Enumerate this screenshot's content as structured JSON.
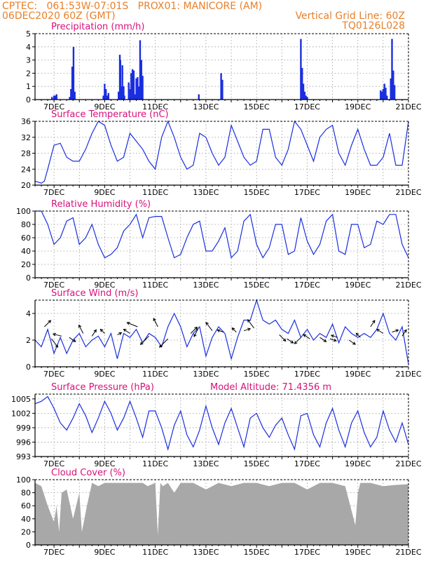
{
  "header": {
    "line1_left": "CPTEC:   061:53W-07:01S   PROX01: MANICORE (AM)",
    "line2_left": "06DEC2020 60Z (GMT)",
    "line2_right": "Vertical Grid Line: 60Z",
    "line3_right": "TQ0126L028"
  },
  "colors": {
    "header_text": "#e8802a",
    "panel_title": "#d8107a",
    "series_line": "#1a2ee0",
    "precip_bar": "#1a2ee0",
    "cloud_fill": "#a8a8a8",
    "axis": "#000000",
    "grid": "#999999"
  },
  "chart_data": [
    {
      "type": "bar",
      "title": "Precipitation  (mm/h)",
      "x_ticks": [
        "7DEC",
        "9DEC",
        "11DEC",
        "13DEC",
        "15DEC",
        "17DEC",
        "19DEC",
        "21DEC"
      ],
      "xlim": [
        6.25,
        21.0
      ],
      "ylim": [
        0,
        5
      ],
      "yticks": [
        0,
        1,
        2,
        3,
        4,
        5
      ],
      "series": [
        {
          "x": [
            6.92,
            7.0,
            7.05,
            7.1,
            7.62,
            7.67,
            7.72,
            7.77,
            7.82,
            8.95,
            9.0,
            9.05,
            9.1,
            9.15,
            9.55,
            9.6,
            9.62,
            9.65,
            9.7,
            9.75,
            9.78,
            9.95,
            10.0,
            10.05,
            10.1,
            10.15,
            10.2,
            10.25,
            10.3,
            10.35,
            10.4,
            10.45,
            10.5,
            12.72,
            13.6,
            13.65,
            16.75,
            16.8,
            16.85,
            16.9,
            16.95,
            17.0,
            19.9,
            19.95,
            20.0,
            20.05,
            20.1,
            20.15,
            20.3,
            20.35,
            20.4,
            20.45
          ],
          "values": [
            0.2,
            0.3,
            0.3,
            0.4,
            0.2,
            0.8,
            2.5,
            4.0,
            0.6,
            0.3,
            1.2,
            0.8,
            0.3,
            0.5,
            0.6,
            3.4,
            3.0,
            1.0,
            2.6,
            1.0,
            0.3,
            1.3,
            0.8,
            2.0,
            2.3,
            2.2,
            0.4,
            1.6,
            1.7,
            1.0,
            4.5,
            3.0,
            1.8,
            0.4,
            2.0,
            1.5,
            4.6,
            2.4,
            1.2,
            0.6,
            0.3,
            0.2,
            0.7,
            0.6,
            0.8,
            1.2,
            0.9,
            0.3,
            1.6,
            4.6,
            2.2,
            1.1
          ]
        }
      ]
    },
    {
      "type": "line",
      "title": "Surface Temperature  (nC)",
      "x_ticks": [
        "7DEC",
        "9DEC",
        "11DEC",
        "13DEC",
        "15DEC",
        "17DEC",
        "19DEC",
        "21DEC"
      ],
      "xlim": [
        6.25,
        21.0
      ],
      "ylim": [
        20,
        36
      ],
      "yticks": [
        20,
        24,
        28,
        32,
        36
      ],
      "series": [
        {
          "x": [
            6.25,
            6.5,
            6.62,
            6.75,
            7.0,
            7.25,
            7.5,
            7.75,
            8.0,
            8.25,
            8.5,
            8.75,
            9.0,
            9.25,
            9.5,
            9.75,
            10.0,
            10.25,
            10.5,
            10.75,
            11.0,
            11.25,
            11.5,
            11.75,
            12.0,
            12.25,
            12.5,
            12.75,
            13.0,
            13.25,
            13.5,
            13.75,
            14.0,
            14.25,
            14.5,
            14.75,
            15.0,
            15.25,
            15.5,
            15.75,
            16.0,
            16.25,
            16.5,
            16.75,
            17.0,
            17.25,
            17.5,
            17.75,
            18.0,
            18.25,
            18.5,
            18.75,
            19.0,
            19.25,
            19.5,
            19.75,
            20.0,
            20.25,
            20.5,
            20.75,
            21.0
          ],
          "values": [
            21,
            20.5,
            21,
            24,
            30,
            30.5,
            27,
            26,
            26,
            29,
            33,
            36,
            35,
            30,
            26,
            27,
            33,
            31,
            29,
            26,
            24,
            32,
            36,
            32,
            27,
            24,
            25,
            33,
            32,
            28,
            25,
            27,
            35,
            31,
            27,
            25,
            26,
            34,
            34,
            27,
            25,
            29,
            36,
            34,
            30,
            26,
            32,
            34,
            35,
            28,
            25,
            30,
            34,
            29,
            25,
            25,
            27,
            33,
            25,
            25,
            36
          ]
        }
      ]
    },
    {
      "type": "line",
      "title": "Relative Humidity  (%)",
      "x_ticks": [
        "7DEC",
        "9DEC",
        "11DEC",
        "13DEC",
        "15DEC",
        "17DEC",
        "19DEC",
        "21DEC"
      ],
      "xlim": [
        6.25,
        21.0
      ],
      "ylim": [
        0,
        100
      ],
      "yticks": [
        0,
        20,
        40,
        60,
        80,
        100
      ],
      "series": [
        {
          "x": [
            6.25,
            6.5,
            6.75,
            7.0,
            7.25,
            7.5,
            7.75,
            8.0,
            8.25,
            8.5,
            8.75,
            9.0,
            9.25,
            9.5,
            9.75,
            10.0,
            10.25,
            10.5,
            10.75,
            11.0,
            11.25,
            11.5,
            11.75,
            12.0,
            12.25,
            12.5,
            12.75,
            13.0,
            13.25,
            13.5,
            13.75,
            14.0,
            14.25,
            14.5,
            14.75,
            15.0,
            15.25,
            15.5,
            15.75,
            16.0,
            16.25,
            16.5,
            16.75,
            17.0,
            17.25,
            17.5,
            17.75,
            18.0,
            18.25,
            18.5,
            18.75,
            19.0,
            19.25,
            19.5,
            19.75,
            20.0,
            20.25,
            20.5,
            20.75,
            21.0
          ],
          "values": [
            100,
            100,
            80,
            50,
            60,
            85,
            90,
            50,
            60,
            80,
            50,
            30,
            35,
            45,
            70,
            80,
            95,
            60,
            90,
            92,
            92,
            60,
            30,
            35,
            60,
            80,
            85,
            40,
            40,
            55,
            75,
            30,
            40,
            85,
            95,
            50,
            30,
            45,
            80,
            80,
            35,
            40,
            90,
            55,
            35,
            50,
            85,
            95,
            40,
            35,
            80,
            80,
            45,
            50,
            85,
            80,
            95,
            95,
            50,
            30
          ]
        }
      ]
    },
    {
      "type": "line",
      "title": "Surface Wind  (m/s)",
      "x_ticks": [
        "7DEC",
        "9DEC",
        "11DEC",
        "13DEC",
        "15DEC",
        "17DEC",
        "19DEC",
        "21DEC"
      ],
      "xlim": [
        6.25,
        21.0
      ],
      "ylim": [
        0,
        5
      ],
      "yticks": [
        0,
        2,
        4
      ],
      "series": [
        {
          "x": [
            6.25,
            6.5,
            6.75,
            7.0,
            7.25,
            7.5,
            7.75,
            8.0,
            8.25,
            8.5,
            8.75,
            9.0,
            9.25,
            9.5,
            9.75,
            10.0,
            10.25,
            10.5,
            10.75,
            11.0,
            11.25,
            11.5,
            11.75,
            12.0,
            12.25,
            12.5,
            12.75,
            13.0,
            13.25,
            13.5,
            13.75,
            14.0,
            14.25,
            14.5,
            14.75,
            15.0,
            15.25,
            15.5,
            15.75,
            16.0,
            16.25,
            16.5,
            16.75,
            17.0,
            17.25,
            17.5,
            17.75,
            18.0,
            18.25,
            18.5,
            18.75,
            19.0,
            19.25,
            19.5,
            19.75,
            20.0,
            20.25,
            20.5,
            20.75,
            21.0
          ],
          "values": [
            2,
            1.5,
            2.8,
            1,
            2.2,
            1,
            2,
            2.5,
            1.5,
            2,
            2.3,
            1.5,
            2.5,
            0.6,
            2.5,
            2.2,
            2.8,
            1.8,
            2.5,
            2.2,
            1.5,
            3,
            4,
            3,
            1.5,
            2.5,
            3,
            0.8,
            2.2,
            3,
            2.5,
            0.6,
            2.2,
            3.5,
            3.5,
            5,
            3.5,
            3.2,
            3.5,
            2.8,
            2.5,
            3.5,
            2.2,
            2.8,
            2,
            2.5,
            2.2,
            3.2,
            1.8,
            3,
            2.5,
            2.2,
            2.5,
            2.2,
            2.8,
            4,
            2.5,
            2,
            3,
            0.2
          ]
        }
      ],
      "wind_arrows": {
        "x": [
          6.62,
          6.9,
          7.3,
          7.6,
          8.15,
          8.5,
          9.0,
          9.5,
          10.0,
          10.3,
          10.75,
          11.1,
          11.5,
          12.4,
          12.7,
          13.25,
          13.7,
          14.2,
          14.5,
          14.9,
          15.9,
          16.2,
          16.75,
          17.1,
          17.5,
          17.9,
          18.2,
          18.65,
          19.1,
          19.5,
          20.0,
          20.35,
          20.75
        ],
        "y": [
          3.0,
          2.1,
          2.3,
          2.2,
          2.5,
          2.3,
          2.5,
          2.4,
          2.5,
          3.0,
          2.3,
          3.0,
          2.1,
          2.5,
          2.9,
          2.7,
          2.6,
          2.6,
          2.7,
          2.9,
          2.4,
          2.1,
          2.2,
          2.1,
          2.2,
          2.1,
          2.2,
          2.0,
          2.2,
          3.0,
          2.5,
          2.6,
          2.3
        ],
        "u": [
          3,
          3,
          -4,
          3,
          -2,
          2,
          -2,
          2,
          -3,
          -5,
          -4,
          -2,
          -4,
          3,
          -2,
          -3,
          -3,
          -2,
          3,
          -3,
          3,
          3,
          -3,
          -3,
          3,
          3,
          -3,
          3,
          -2,
          2,
          -3,
          3,
          2
        ],
        "v": [
          3,
          -4,
          1,
          -2,
          4,
          3,
          2,
          1,
          2,
          2,
          -4,
          4,
          -4,
          3,
          -4,
          4,
          1,
          2,
          1,
          4,
          -3,
          -2,
          -3,
          2,
          -2,
          -1,
          1,
          -2,
          2,
          3,
          2,
          1,
          3
        ]
      }
    },
    {
      "type": "line",
      "title": "Surface Pressure  (hPa)",
      "annotation": "Model Altitude:  71.4356  m",
      "x_ticks": [
        "7DEC",
        "9DEC",
        "11DEC",
        "13DEC",
        "15DEC",
        "17DEC",
        "19DEC",
        "21DEC"
      ],
      "xlim": [
        6.25,
        21.0
      ],
      "ylim": [
        993,
        1006
      ],
      "yticks": [
        993,
        996,
        999,
        1002,
        1005
      ],
      "series": [
        {
          "x": [
            6.25,
            6.5,
            6.75,
            7.0,
            7.25,
            7.5,
            7.75,
            8.0,
            8.25,
            8.5,
            8.75,
            9.0,
            9.25,
            9.5,
            9.75,
            10.0,
            10.25,
            10.5,
            10.75,
            11.0,
            11.25,
            11.5,
            11.75,
            12.0,
            12.25,
            12.5,
            12.75,
            13.0,
            13.25,
            13.5,
            13.75,
            14.0,
            14.25,
            14.5,
            14.75,
            15.0,
            15.25,
            15.5,
            15.75,
            16.0,
            16.25,
            16.5,
            16.75,
            17.0,
            17.25,
            17.5,
            17.75,
            18.0,
            18.25,
            18.5,
            18.75,
            19.0,
            19.25,
            19.5,
            19.75,
            20.0,
            20.25,
            20.5,
            20.75,
            21.0
          ],
          "values": [
            1004,
            1004.5,
            1005.5,
            1003,
            1000,
            998.5,
            1001,
            1004,
            1001.5,
            998,
            1001,
            1004.5,
            1002,
            998.5,
            1001,
            1004.5,
            1001,
            997,
            1002.5,
            1002.5,
            999,
            994.5,
            999.5,
            1002.5,
            997.5,
            995,
            998.5,
            1003.5,
            999,
            995.5,
            1000,
            1003,
            999,
            995,
            1001,
            1002,
            999,
            997,
            999.5,
            1001,
            997.5,
            994.5,
            1001.5,
            1002,
            997.5,
            995,
            1000,
            1003,
            998.5,
            995,
            1000,
            1002.5,
            998,
            995,
            997,
            1002.5,
            998.5,
            996,
            1000,
            995.5
          ]
        }
      ]
    },
    {
      "type": "area",
      "title": "Cloud Cover  (%)",
      "x_ticks": [
        "7DEC",
        "9DEC",
        "11DEC",
        "13DEC",
        "15DEC",
        "17DEC",
        "19DEC",
        "21DEC"
      ],
      "xlim": [
        6.25,
        21.0
      ],
      "ylim": [
        0,
        100
      ],
      "yticks": [
        0,
        20,
        40,
        60,
        80,
        100
      ],
      "series": [
        {
          "x": [
            6.25,
            6.5,
            6.75,
            7.0,
            7.1,
            7.2,
            7.3,
            7.5,
            7.75,
            8.0,
            8.1,
            8.3,
            8.5,
            8.75,
            9.0,
            9.5,
            10.0,
            10.5,
            10.7,
            11.0,
            11.1,
            11.2,
            11.3,
            11.5,
            11.75,
            12.0,
            12.5,
            13.0,
            13.5,
            14.0,
            14.5,
            15.0,
            15.5,
            16.0,
            16.5,
            17.0,
            17.5,
            18.0,
            18.5,
            18.9,
            19.0,
            19.1,
            19.5,
            20.0,
            20.5,
            21.0
          ],
          "values": [
            95,
            90,
            60,
            35,
            60,
            20,
            80,
            85,
            40,
            80,
            20,
            60,
            95,
            90,
            95,
            95,
            95,
            95,
            90,
            95,
            15,
            95,
            90,
            95,
            80,
            95,
            95,
            85,
            95,
            90,
            95,
            95,
            90,
            95,
            95,
            85,
            95,
            95,
            90,
            30,
            80,
            95,
            95,
            90,
            92,
            93
          ]
        }
      ]
    }
  ]
}
